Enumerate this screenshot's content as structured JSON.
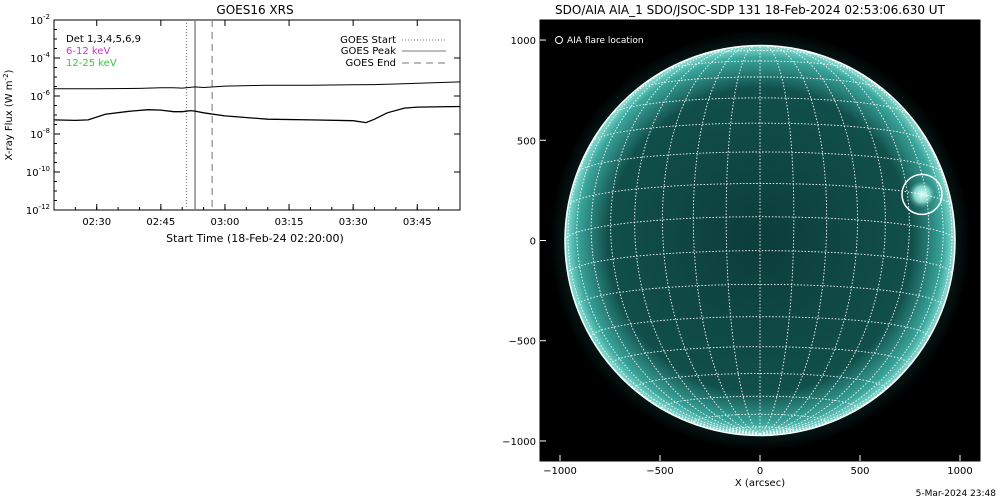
{
  "footer": {
    "timestamp": "5-Mar-2024 23:48"
  },
  "chart_data": [
    {
      "type": "line",
      "title": "GOES16 XRS",
      "xlabel": "Start Time (18-Feb-24 02:20:00)",
      "ylabel_main": "X-ray Flux (W m",
      "ylabel_sup": "-2",
      "ylabel_close": ")",
      "y_scale": "log",
      "ylim": [
        1e-12,
        0.01
      ],
      "xlim": [
        "02:20",
        "03:55"
      ],
      "yticks": [
        {
          "value": 0.01,
          "base": "10",
          "exp": "-2"
        },
        {
          "value": 0.0001,
          "base": "10",
          "exp": "-4"
        },
        {
          "value": 1e-06,
          "base": "10",
          "exp": "-6"
        },
        {
          "value": 1e-08,
          "base": "10",
          "exp": "-8"
        },
        {
          "value": 1e-10,
          "base": "10",
          "exp": "-10"
        },
        {
          "value": 1e-12,
          "base": "10",
          "exp": "-12"
        }
      ],
      "xticks": [
        "02:30",
        "02:45",
        "03:00",
        "03:15",
        "03:30",
        "03:45"
      ],
      "detector_note": "Det 1,3,4,5,6,9",
      "energy_labels": [
        {
          "text": "6-12 keV",
          "color": "#cc33cc"
        },
        {
          "text": "12-25 keV",
          "color": "#33cc33"
        }
      ],
      "legend": [
        {
          "label": "GOES Start",
          "style": "dotted",
          "time": "02:51"
        },
        {
          "label": "GOES Peak",
          "style": "solid",
          "time": "02:53"
        },
        {
          "label": "GOES End",
          "style": "dashed",
          "time": "02:57"
        }
      ],
      "series": [
        {
          "color": "#000000",
          "x": [
            "02:20",
            "02:30",
            "02:40",
            "02:45",
            "02:48",
            "02:50",
            "02:53",
            "02:55",
            "03:00",
            "03:10",
            "03:20",
            "03:30",
            "03:35",
            "03:40",
            "03:55"
          ],
          "values": [
            2.4e-06,
            2.4e-06,
            2.5e-06,
            2.7e-06,
            2.7e-06,
            2.6e-06,
            3e-06,
            2.8e-06,
            3.3e-06,
            3.7e-06,
            3.7e-06,
            3.9e-06,
            4e-06,
            4.3e-06,
            5.5e-06
          ]
        },
        {
          "color": "#000000",
          "x": [
            "02:20",
            "02:25",
            "02:28",
            "02:32",
            "02:38",
            "02:42",
            "02:45",
            "02:48",
            "02:50",
            "02:52",
            "02:53",
            "02:55",
            "03:00",
            "03:10",
            "03:20",
            "03:30",
            "03:33",
            "03:35",
            "03:38",
            "03:42",
            "03:45",
            "03:55"
          ],
          "values": [
            5.5e-08,
            5.2e-08,
            5.5e-08,
            1.1e-07,
            1.6e-07,
            1.9e-07,
            1.8e-07,
            1.5e-07,
            1.5e-07,
            1.7e-07,
            1.6e-07,
            1.3e-07,
            9e-08,
            6e-08,
            5.5e-08,
            5e-08,
            4e-08,
            6e-08,
            1.3e-07,
            2.3e-07,
            2.6e-07,
            2.8e-07
          ]
        }
      ]
    },
    {
      "type": "scatter",
      "title": "SDO/AIA AIA_1 SDO/JSOC-SDP 131 18-Feb-2024 02:53:06.630 UT",
      "xlabel": "X (arcsec)",
      "ylabel": "",
      "xlim": [
        -1100,
        1100
      ],
      "ylim": [
        -1100,
        1100
      ],
      "xticks": [
        -1000,
        -500,
        0,
        500,
        1000
      ],
      "yticks": [
        1000,
        500,
        0,
        -500,
        -1000
      ],
      "legend": [
        {
          "label": "AIA flare location",
          "marker": "circle"
        }
      ],
      "solar_radius_arcsec": 975,
      "grid": true,
      "image_colormap": "teal",
      "flare_location": {
        "x": 810,
        "y": 230,
        "radius": 100
      }
    }
  ]
}
